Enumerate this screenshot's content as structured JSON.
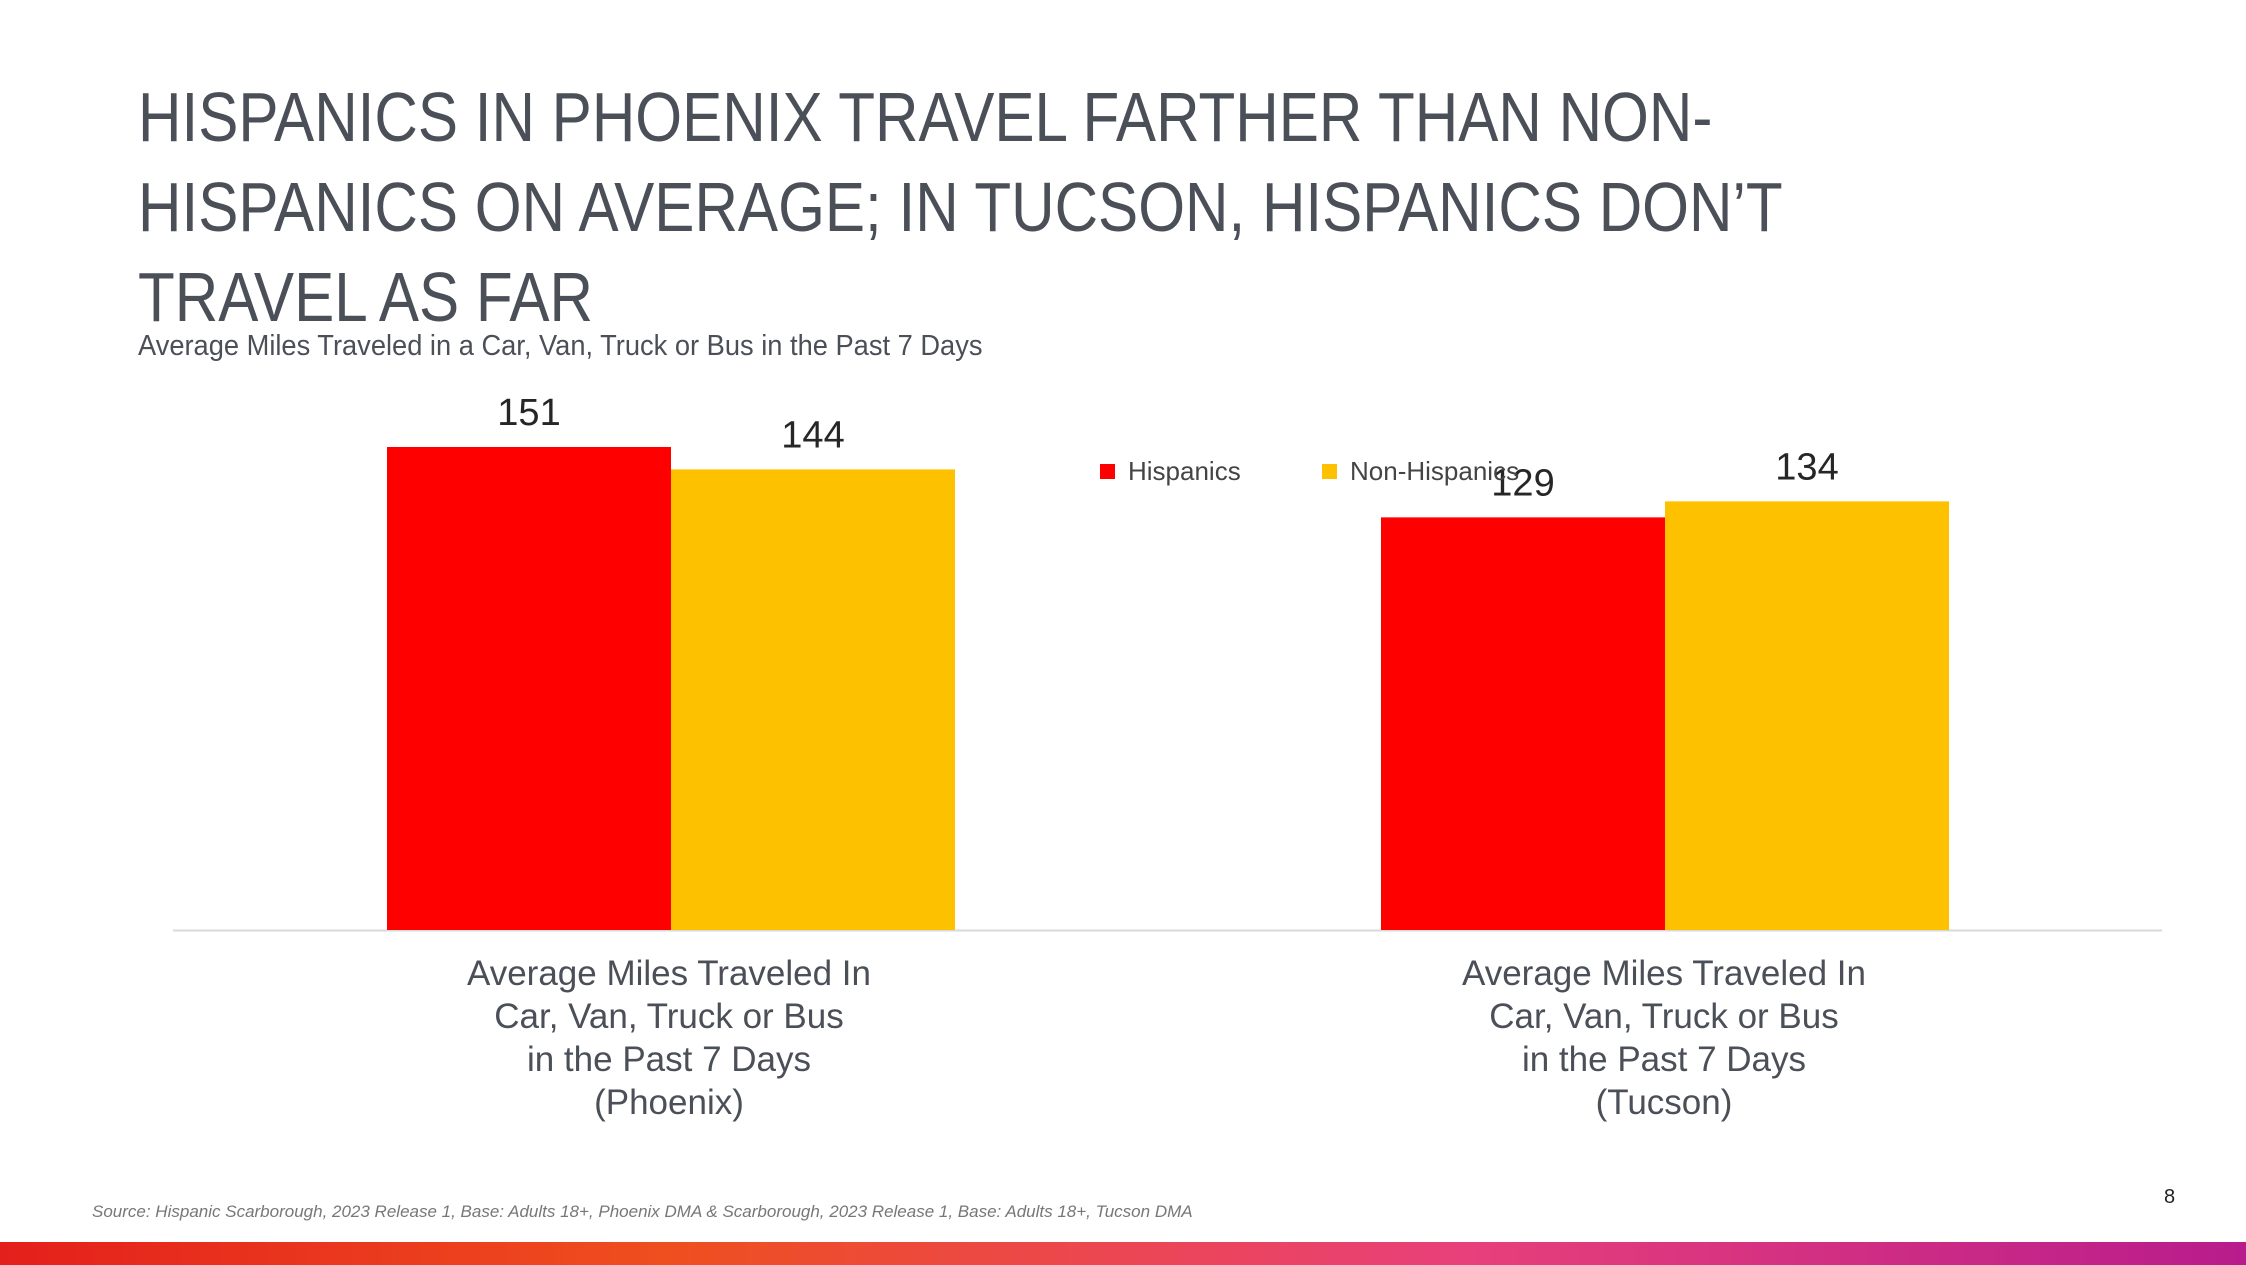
{
  "slide": {
    "title": "HISPANICS IN PHOENIX TRAVEL FARTHER THAN NON-\nHISPANICS ON AVERAGE; IN TUCSON, HISPANICS DON’T\nTRAVEL AS FAR",
    "subtitle": "Average Miles Traveled in a Car, Van, Truck or Bus in the Past 7 Days",
    "source": "Source: Hispanic Scarborough, 2023 Release 1, Base: Adults 18+, Phoenix DMA & Scarborough, 2023 Release 1, Base: Adults 18+, Tucson DMA",
    "page_number": "8"
  },
  "legend": {
    "placement": "top-right",
    "items": [
      {
        "name": "Hispanics",
        "color": "#ff0000"
      },
      {
        "name": "Non-Hispanics",
        "color": "#fdc100"
      }
    ]
  },
  "chart_data": {
    "type": "bar",
    "categories": [
      "Average Miles Traveled In\nCar, Van, Truck or Bus\nin the Past 7 Days\n(Phoenix)",
      "Average Miles Traveled In\nCar, Van, Truck or Bus\nin the Past 7 Days\n(Tucson)"
    ],
    "series": [
      {
        "name": "Hispanics",
        "values": [
          151,
          129
        ],
        "color": "#ff0000"
      },
      {
        "name": "Non-Hispanics",
        "values": [
          144,
          134
        ],
        "color": "#fdc100"
      }
    ],
    "ylim": [
      0,
      151
    ],
    "grid": false,
    "data_labels": true
  },
  "colors": {
    "text": "#4b4f58",
    "bottom_bar_start": "#e4201c",
    "bottom_bar_end": "#b81c8c"
  }
}
